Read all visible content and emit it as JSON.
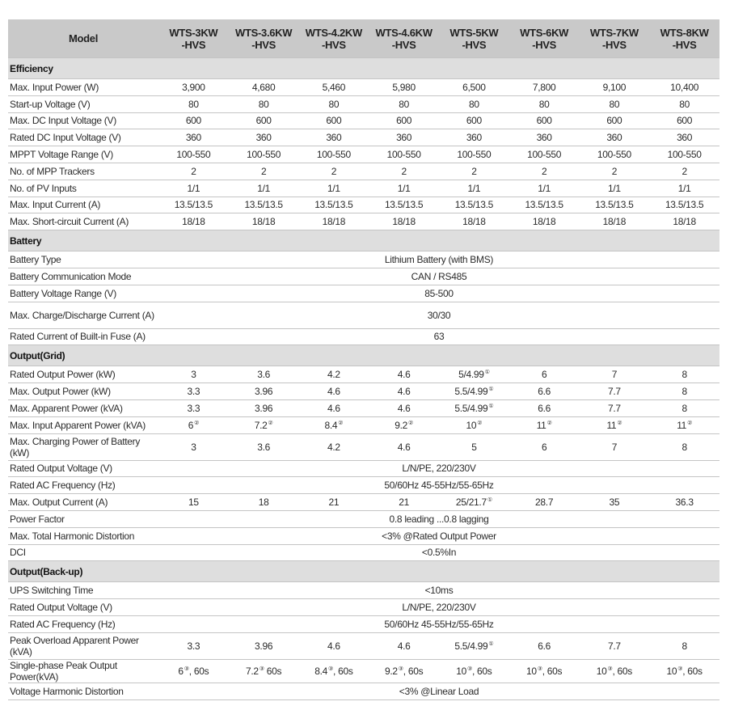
{
  "header": {
    "model_label": "Model",
    "models": [
      [
        "WTS-3KW",
        "-HVS"
      ],
      [
        "WTS-3.6KW",
        "-HVS"
      ],
      [
        "WTS-4.2KW",
        "-HVS"
      ],
      [
        "WTS-4.6KW",
        "-HVS"
      ],
      [
        "WTS-5KW",
        "-HVS"
      ],
      [
        "WTS-6KW",
        "-HVS"
      ],
      [
        "WTS-7KW",
        "-HVS"
      ],
      [
        "WTS-8KW",
        "-HVS"
      ]
    ]
  },
  "sections": [
    {
      "title": "Efficiency",
      "rows": [
        {
          "label": "Max. Input Power (W)",
          "values": [
            "3,900",
            "4,680",
            "5,460",
            "5,980",
            "6,500",
            "7,800",
            "9,100",
            "10,400"
          ]
        },
        {
          "label": "Start-up Voltage (V)",
          "values": [
            "80",
            "80",
            "80",
            "80",
            "80",
            "80",
            "80",
            "80"
          ]
        },
        {
          "label": "Max. DC Input Voltage (V)",
          "values": [
            "600",
            "600",
            "600",
            "600",
            "600",
            "600",
            "600",
            "600"
          ]
        },
        {
          "label": "Rated DC Input Voltage (V)",
          "values": [
            "360",
            "360",
            "360",
            "360",
            "360",
            "360",
            "360",
            "360"
          ]
        },
        {
          "label": "MPPT Voltage Range (V)",
          "values": [
            "100-550",
            "100-550",
            "100-550",
            "100-550",
            "100-550",
            "100-550",
            "100-550",
            "100-550"
          ]
        },
        {
          "label": "No. of MPP Trackers",
          "values": [
            "2",
            "2",
            "2",
            "2",
            "2",
            "2",
            "2",
            "2"
          ]
        },
        {
          "label": "No. of PV Inputs",
          "values": [
            "1/1",
            "1/1",
            "1/1",
            "1/1",
            "1/1",
            "1/1",
            "1/1",
            "1/1"
          ]
        },
        {
          "label": "Max. Input Current (A)",
          "values": [
            "13.5/13.5",
            "13.5/13.5",
            "13.5/13.5",
            "13.5/13.5",
            "13.5/13.5",
            "13.5/13.5",
            "13.5/13.5",
            "13.5/13.5"
          ]
        },
        {
          "label": "Max. Short-circuit Current (A)",
          "values": [
            "18/18",
            "18/18",
            "18/18",
            "18/18",
            "18/18",
            "18/18",
            "18/18",
            "18/18"
          ]
        }
      ]
    },
    {
      "title": "Battery",
      "rows": [
        {
          "label": "Battery Type",
          "span": "Lithium Battery (with BMS)"
        },
        {
          "label": "Battery Communication Mode",
          "span": "CAN / RS485"
        },
        {
          "label": "Battery Voltage Range (V)",
          "span": "85-500"
        },
        {
          "label": "Max. Charge/Discharge Current (A)",
          "span": "30/30",
          "double": true
        },
        {
          "label": "Rated Current of Built-in Fuse (A)",
          "span": "63"
        }
      ]
    },
    {
      "title": "Output(Grid)",
      "rows": [
        {
          "label": "Rated Output Power (kW)",
          "values": [
            "3",
            "3.6",
            "4.2",
            "4.6",
            {
              "v": "5/4.99",
              "sup": "①"
            },
            "6",
            "7",
            "8"
          ]
        },
        {
          "label": "Max. Output Power (kW)",
          "values": [
            "3.3",
            "3.96",
            "4.6",
            "4.6",
            {
              "v": "5.5/4.99",
              "sup": "①"
            },
            "6.6",
            "7.7",
            "8"
          ]
        },
        {
          "label": "Max. Apparent Power (kVA)",
          "values": [
            "3.3",
            "3.96",
            "4.6",
            "4.6",
            {
              "v": "5.5/4.99",
              "sup": "①"
            },
            "6.6",
            "7.7",
            "8"
          ]
        },
        {
          "label": "Max. Input Apparent Power (kVA)",
          "values": [
            {
              "v": "6",
              "sup": "②"
            },
            {
              "v": "7.2",
              "sup": "②"
            },
            {
              "v": "8.4",
              "sup": "②"
            },
            {
              "v": "9.2",
              "sup": "②"
            },
            {
              "v": "10",
              "sup": "②"
            },
            {
              "v": "11",
              "sup": "②"
            },
            {
              "v": "11",
              "sup": "②"
            },
            {
              "v": "11",
              "sup": "②"
            }
          ]
        },
        {
          "label": "Max. Charging Power of Battery (kW)",
          "double": true,
          "values": [
            "3",
            "3.6",
            "4.2",
            "4.6",
            "5",
            "6",
            "7",
            "8"
          ]
        },
        {
          "label": "Rated Output Voltage (V)",
          "span": "L/N/PE, 220/230V"
        },
        {
          "label": "Rated AC Frequency (Hz)",
          "span": "50/60Hz 45-55Hz/55-65Hz"
        },
        {
          "label": "Max. Output Current (A)",
          "values": [
            "15",
            "18",
            "21",
            "21",
            {
              "v": "25/21.7",
              "sup": "①"
            },
            "28.7",
            "35",
            "36.3"
          ]
        },
        {
          "label": "Power Factor",
          "span": "0.8 leading ...0.8 lagging"
        },
        {
          "label": "Max. Total Harmonic Distortion",
          "span": "<3% @Rated Output Power"
        },
        {
          "label": "DCI",
          "span": "<0.5%In"
        }
      ]
    },
    {
      "title": "Output(Back-up)",
      "rows": [
        {
          "label": "UPS Switching Time",
          "span": "<10ms"
        },
        {
          "label": "Rated Output Voltage (V)",
          "span": "L/N/PE, 220/230V"
        },
        {
          "label": "Rated AC Frequency (Hz)",
          "span": "50/60Hz 45-55Hz/55-65Hz"
        },
        {
          "label": "Peak Overload Apparent Power (kVA)",
          "double": true,
          "values": [
            "3.3",
            "3.96",
            "4.6",
            "4.6",
            {
              "v": "5.5/4.99",
              "sup": "①"
            },
            "6.6",
            "7.7",
            "8"
          ]
        },
        {
          "label": "Single-phase Peak Output Power(kVA)",
          "values": [
            {
              "v": "6",
              "sup": "③",
              "after": ", 60s"
            },
            {
              "v": "7.2",
              "sup": "③",
              "after": " 60s"
            },
            {
              "v": "8.4",
              "sup": "③",
              "after": ", 60s"
            },
            {
              "v": "9.2",
              "sup": "③",
              "after": ", 60s"
            },
            {
              "v": "10",
              "sup": "③",
              "after": ", 60s"
            },
            {
              "v": "10",
              "sup": "③",
              "after": ", 60s"
            },
            {
              "v": "10",
              "sup": "③",
              "after": ", 60s"
            },
            {
              "v": "10",
              "sup": "③",
              "after": ", 60s"
            }
          ]
        },
        {
          "label": "Voltage Harmonic Distortion",
          "span": "<3% @Linear Load"
        }
      ]
    }
  ]
}
